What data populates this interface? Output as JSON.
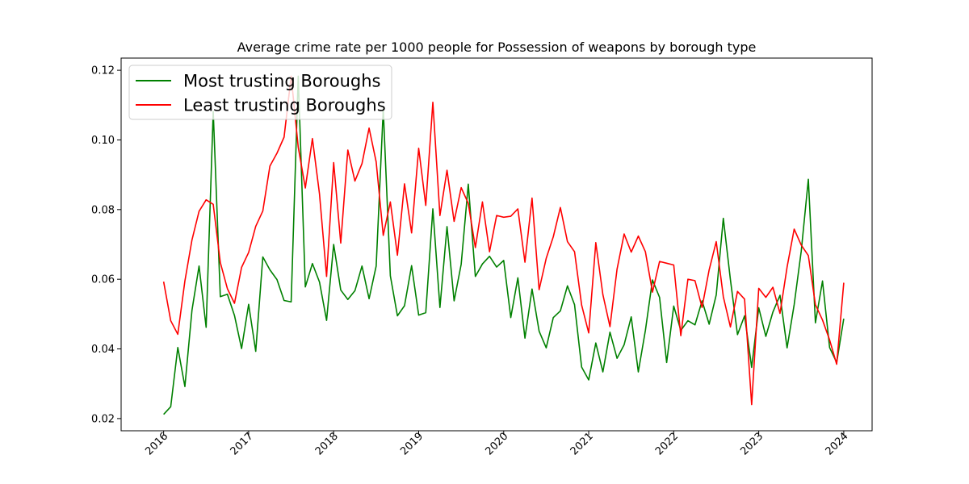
{
  "chart_data": {
    "type": "line",
    "title": "Average crime rate per 1000 people for Possession of weapons by borough type",
    "xlabel": "",
    "ylabel": "",
    "x_start": "2016-01",
    "x_frequency": "monthly",
    "xlim": [
      "2015-07",
      "2024-05"
    ],
    "ylim": [
      0.0165,
      0.1235
    ],
    "x_ticks": [
      "2016",
      "2017",
      "2018",
      "2019",
      "2020",
      "2021",
      "2022",
      "2023",
      "2024"
    ],
    "y_ticks": [
      "0.02",
      "0.04",
      "0.06",
      "0.08",
      "0.10",
      "0.12"
    ],
    "legend_position": "top-left",
    "grid": false,
    "series": [
      {
        "name": "Most trusting Boroughs",
        "color": "#008000",
        "values": [
          0.0212,
          0.0234,
          0.0404,
          0.0292,
          0.0511,
          0.0638,
          0.0462,
          0.1082,
          0.055,
          0.0557,
          0.0496,
          0.0401,
          0.0528,
          0.0393,
          0.0664,
          0.0627,
          0.0599,
          0.0539,
          0.0535,
          0.1183,
          0.0578,
          0.0645,
          0.0592,
          0.0482,
          0.07,
          0.0569,
          0.0542,
          0.0567,
          0.0638,
          0.0544,
          0.0638,
          0.1088,
          0.061,
          0.0495,
          0.0524,
          0.0639,
          0.0497,
          0.0504,
          0.0802,
          0.0519,
          0.0751,
          0.0538,
          0.0643,
          0.0873,
          0.0608,
          0.0644,
          0.0666,
          0.0635,
          0.0654,
          0.049,
          0.0604,
          0.0431,
          0.0572,
          0.0451,
          0.0403,
          0.049,
          0.0509,
          0.0581,
          0.0527,
          0.0348,
          0.0311,
          0.0417,
          0.0334,
          0.0448,
          0.0373,
          0.0412,
          0.0492,
          0.0334,
          0.0453,
          0.0598,
          0.0548,
          0.0361,
          0.0523,
          0.0453,
          0.0481,
          0.0469,
          0.0538,
          0.0471,
          0.0555,
          0.0775,
          0.0599,
          0.0441,
          0.0495,
          0.0347,
          0.0518,
          0.0436,
          0.0506,
          0.0554,
          0.0403,
          0.0527,
          0.0681,
          0.0887,
          0.0475,
          0.0595,
          0.0404,
          0.0361,
          0.0487
        ]
      },
      {
        "name": "Least trusting Boroughs",
        "color": "#ff0000",
        "values": [
          0.0593,
          0.0481,
          0.0442,
          0.0595,
          0.0713,
          0.0795,
          0.0828,
          0.0815,
          0.0648,
          0.0573,
          0.0531,
          0.0634,
          0.0677,
          0.0752,
          0.0796,
          0.0925,
          0.0962,
          0.1008,
          0.1183,
          0.0979,
          0.0862,
          0.1004,
          0.0845,
          0.0608,
          0.0935,
          0.0704,
          0.0971,
          0.0882,
          0.0932,
          0.1034,
          0.0937,
          0.0726,
          0.0822,
          0.0669,
          0.0874,
          0.0733,
          0.0976,
          0.0812,
          0.1108,
          0.0783,
          0.0913,
          0.0766,
          0.0863,
          0.0818,
          0.0691,
          0.0822,
          0.0679,
          0.0783,
          0.0778,
          0.0781,
          0.0802,
          0.0649,
          0.0833,
          0.057,
          0.066,
          0.0722,
          0.0806,
          0.0708,
          0.0679,
          0.0526,
          0.0446,
          0.0705,
          0.0556,
          0.0464,
          0.0629,
          0.073,
          0.0678,
          0.0724,
          0.0679,
          0.0563,
          0.0651,
          0.0646,
          0.0641,
          0.0438,
          0.06,
          0.0596,
          0.0519,
          0.0627,
          0.0708,
          0.055,
          0.0463,
          0.0565,
          0.0543,
          0.024,
          0.0574,
          0.0548,
          0.0577,
          0.0502,
          0.0635,
          0.0744,
          0.0698,
          0.0668,
          0.0527,
          0.0483,
          0.0426,
          0.0356,
          0.059
        ]
      }
    ]
  }
}
